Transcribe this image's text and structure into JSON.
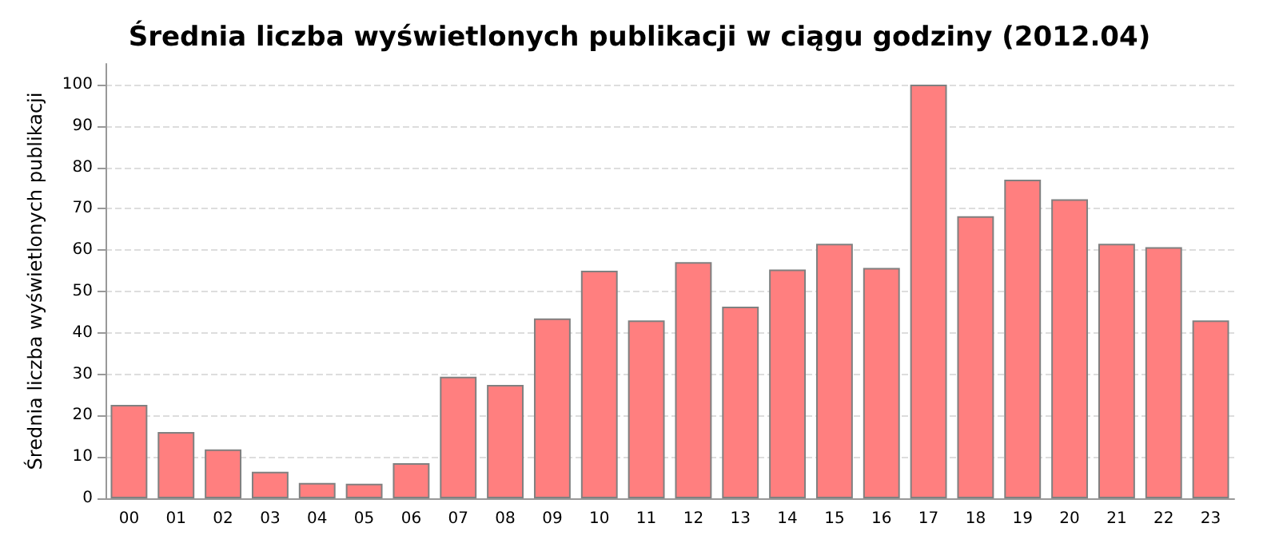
{
  "chart_data": {
    "type": "bar",
    "title": "Średnia liczba wyświetlonych publikacji w ciągu godziny (2012.04)",
    "ylabel": "Średnia liczba wyświetlonych publikacji",
    "categories": [
      "00",
      "01",
      "02",
      "03",
      "04",
      "05",
      "06",
      "07",
      "08",
      "09",
      "10",
      "11",
      "12",
      "13",
      "14",
      "15",
      "16",
      "17",
      "18",
      "19",
      "20",
      "21",
      "22",
      "23"
    ],
    "values": [
      22.6,
      16,
      11.8,
      6.4,
      3.7,
      3.5,
      8.5,
      29.4,
      27.4,
      43.5,
      55,
      43,
      57.1,
      46.3,
      55.3,
      61.5,
      55.7,
      100,
      68.2,
      77,
      72.3,
      61.5,
      60.7,
      43
    ],
    "color": "#ff7f7f",
    "ylim": [
      0,
      105
    ],
    "yticks": [
      0,
      10,
      20,
      30,
      40,
      50,
      60,
      70,
      80,
      90,
      100
    ],
    "grid": "y"
  }
}
